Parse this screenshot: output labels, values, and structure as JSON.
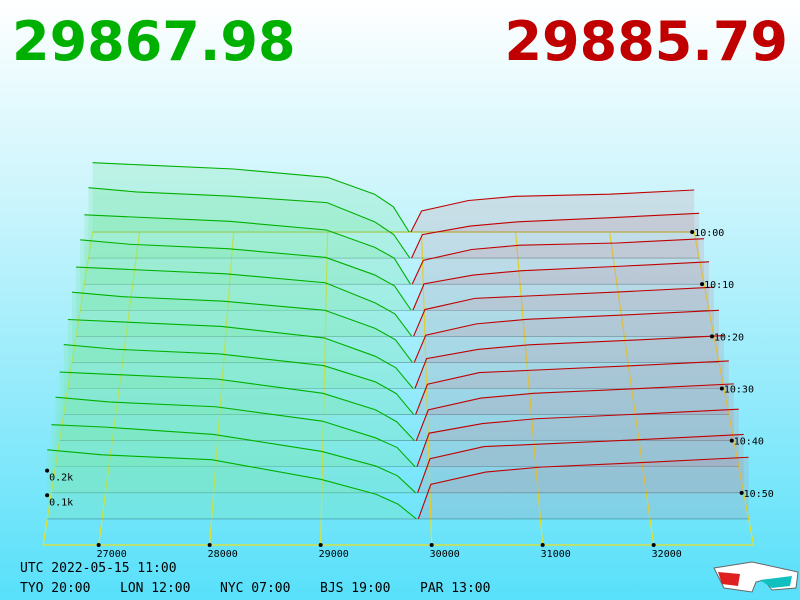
{
  "chart_data": {
    "type": "depth3d",
    "bid": 29867.98,
    "ask": 29885.79,
    "bid_color": "#00b000",
    "ask_color": "#c00000",
    "xlim": [
      26500,
      32900
    ],
    "xticks": [
      27000,
      28000,
      29000,
      30000,
      31000,
      32000
    ],
    "times": [
      "10:00",
      "10:10",
      "10:20",
      "10:30",
      "10:40",
      "10:50"
    ],
    "zticks": [
      {
        "value": 0.1,
        "label": "0.1k"
      },
      {
        "value": 0.2,
        "label": "0.2k"
      }
    ],
    "bid_prices": [
      26500,
      27000,
      28000,
      29000,
      29500,
      29700,
      29868
    ],
    "ask_prices": [
      29886,
      30000,
      30500,
      31000,
      32000,
      32900
    ],
    "slices": [
      {
        "bids": [
          0.33,
          0.32,
          0.3,
          0.26,
          0.18,
          0.12,
          0
        ],
        "asks": [
          0,
          0.1,
          0.15,
          0.17,
          0.18,
          0.2
        ]
      },
      {
        "bids": [
          0.33,
          0.31,
          0.29,
          0.26,
          0.17,
          0.11,
          0
        ],
        "asks": [
          0,
          0.11,
          0.15,
          0.17,
          0.19,
          0.21
        ]
      },
      {
        "bids": [
          0.32,
          0.31,
          0.29,
          0.25,
          0.17,
          0.12,
          0
        ],
        "asks": [
          0,
          0.11,
          0.16,
          0.18,
          0.19,
          0.21
        ]
      },
      {
        "bids": [
          0.32,
          0.3,
          0.28,
          0.24,
          0.16,
          0.11,
          0
        ],
        "asks": [
          0,
          0.12,
          0.16,
          0.18,
          0.2,
          0.22
        ]
      },
      {
        "bids": [
          0.31,
          0.3,
          0.28,
          0.24,
          0.15,
          0.1,
          0
        ],
        "asks": [
          0,
          0.12,
          0.17,
          0.18,
          0.2,
          0.22
        ]
      },
      {
        "bids": [
          0.31,
          0.29,
          0.27,
          0.23,
          0.15,
          0.1,
          0
        ],
        "asks": [
          0,
          0.12,
          0.17,
          0.19,
          0.21,
          0.23
        ]
      },
      {
        "bids": [
          0.3,
          0.29,
          0.27,
          0.22,
          0.14,
          0.09,
          0
        ],
        "asks": [
          0,
          0.13,
          0.17,
          0.19,
          0.21,
          0.23
        ]
      },
      {
        "bids": [
          0.3,
          0.28,
          0.26,
          0.21,
          0.14,
          0.09,
          0
        ],
        "asks": [
          0,
          0.13,
          0.18,
          0.19,
          0.21,
          0.23
        ]
      },
      {
        "bids": [
          0.29,
          0.28,
          0.26,
          0.2,
          0.13,
          0.08,
          0
        ],
        "asks": [
          0,
          0.13,
          0.18,
          0.2,
          0.22,
          0.24
        ]
      },
      {
        "bids": [
          0.29,
          0.27,
          0.25,
          0.19,
          0.12,
          0.08,
          0
        ],
        "asks": [
          0,
          0.14,
          0.18,
          0.2,
          0.22,
          0.24
        ]
      },
      {
        "bids": [
          0.28,
          0.27,
          0.24,
          0.17,
          0.11,
          0.07,
          0
        ],
        "asks": [
          0,
          0.14,
          0.19,
          0.2,
          0.22,
          0.24
        ]
      },
      {
        "bids": [
          0.28,
          0.26,
          0.24,
          0.16,
          0.1,
          0.06,
          0
        ],
        "asks": [
          0,
          0.14,
          0.19,
          0.21,
          0.23,
          0.25
        ]
      }
    ]
  },
  "footer": {
    "utc": "UTC 2022-05-15 11:00",
    "clocks": [
      "TYO 20:00",
      "LON 12:00",
      "NYC 07:00",
      "BJS 19:00",
      "PAR 13:00"
    ]
  }
}
